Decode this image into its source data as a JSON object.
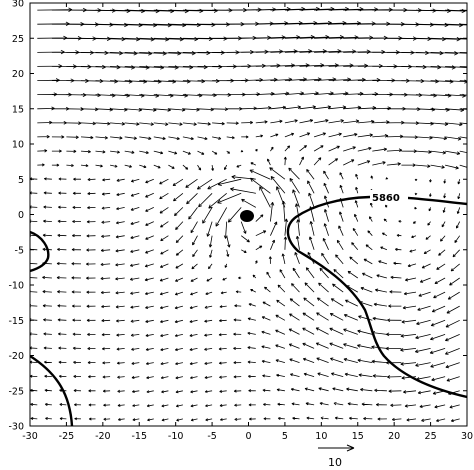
{
  "figure": {
    "x_axis": {
      "range": [
        -30,
        30
      ],
      "ticks": [
        -30,
        -25,
        -20,
        -15,
        -10,
        -5,
        0,
        5,
        10,
        15,
        20,
        25,
        30
      ]
    },
    "y_axis": {
      "range": [
        -30,
        30
      ],
      "ticks": [
        -30,
        -25,
        -20,
        -15,
        -10,
        -5,
        0,
        5,
        10,
        15,
        20,
        25,
        30
      ]
    },
    "contour": {
      "label": "5860",
      "level": 5860
    },
    "reference_vector": {
      "label": "10",
      "magnitude": 10
    },
    "colors": {
      "ink": "#000000",
      "background": "#ffffff"
    }
  }
}
